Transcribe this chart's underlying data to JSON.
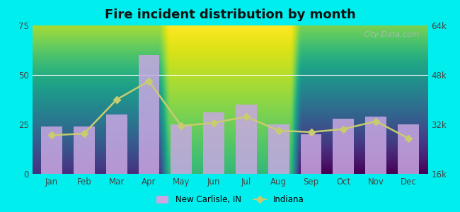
{
  "title": "Fire incident distribution by month",
  "months": [
    "Jan",
    "Feb",
    "Mar",
    "Apr",
    "May",
    "Jun",
    "Jul",
    "Aug",
    "Sep",
    "Oct",
    "Nov",
    "Dec"
  ],
  "bar_values": [
    24,
    24,
    30,
    60,
    25,
    31,
    35,
    25,
    20,
    28,
    29,
    25
  ],
  "line_values": [
    28500,
    29000,
    40000,
    46000,
    31500,
    32500,
    34500,
    30000,
    29500,
    30500,
    33000,
    27500
  ],
  "bar_color": "#c9a8e2",
  "line_color": "#c8cc6e",
  "bar_ylim": [
    0,
    75
  ],
  "line_ylim": [
    16000,
    64000
  ],
  "bar_yticks": [
    0,
    25,
    50,
    75
  ],
  "line_yticks": [
    16000,
    32000,
    48000,
    64000
  ],
  "line_ytick_labels": [
    "16k",
    "32k",
    "48k",
    "64k"
  ],
  "outer_bg": "#00eeee",
  "plot_bg_top": "#f0f8ee",
  "plot_bg_bottom": "#c8e8c0",
  "watermark": "City-Data.com",
  "legend_new_carlisle": "New Carlisle, IN",
  "legend_indiana": "Indiana"
}
